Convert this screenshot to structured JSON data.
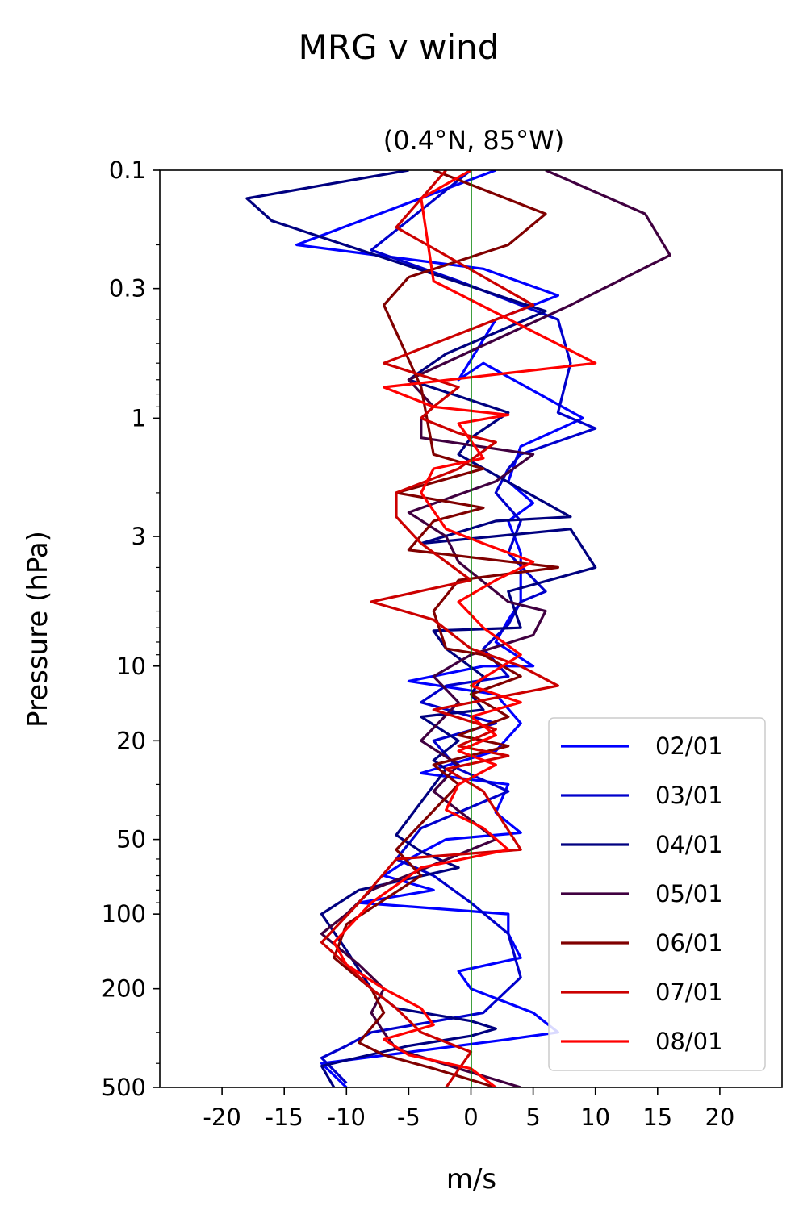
{
  "chart_data": {
    "type": "line",
    "title": "MRG v wind",
    "subtitle": "(0.4°N, 85°W)",
    "xlabel": "m/s",
    "ylabel": "Pressure (hPa)",
    "xlim": [
      -25,
      25
    ],
    "ylim": [
      500,
      0.1
    ],
    "yscale": "log",
    "y_inverted": true,
    "x_ticks": [
      -20,
      -15,
      -10,
      -5,
      0,
      5,
      10,
      15,
      20
    ],
    "x_tick_labels": [
      "-20",
      "-15",
      "-10",
      "-5",
      "0",
      "5",
      "10",
      "15",
      "20"
    ],
    "y_ticks": [
      0.1,
      0.3,
      1,
      3,
      10,
      20,
      50,
      100,
      200,
      500
    ],
    "y_tick_labels": [
      "0.1",
      "0.3",
      "1",
      "3",
      "10",
      "20",
      "50",
      "100",
      "200",
      "500"
    ],
    "zero_line_color": "#008000",
    "legend_position": "lower-right",
    "grid": false,
    "series": [
      {
        "name": "02/01",
        "color": "#0000ff",
        "x": [
          2,
          -14,
          1,
          7,
          2,
          -1,
          1,
          9,
          4,
          3,
          5,
          3,
          4,
          4,
          3,
          2,
          5,
          1,
          -5,
          2,
          4,
          2,
          -4,
          3,
          2,
          4,
          -2,
          -5,
          -7,
          -3,
          -9,
          3,
          3,
          4,
          -1,
          0,
          5,
          7,
          3,
          -12,
          -10
        ],
        "y": [
          0.1,
          0.2,
          0.25,
          0.32,
          0.4,
          0.7,
          0.6,
          1.0,
          1.3,
          1.8,
          2.2,
          2.6,
          3.5,
          5.5,
          6.5,
          8,
          10,
          10,
          11.5,
          13,
          17,
          22,
          27,
          30,
          39,
          47,
          50,
          60,
          70,
          80,
          90,
          100,
          120,
          150,
          170,
          200,
          250,
          300,
          320,
          400,
          500
        ]
      },
      {
        "name": "03/01",
        "color": "#0000cc",
        "x": [
          0,
          -8,
          -1,
          7,
          8,
          7,
          10,
          4,
          3,
          2,
          4,
          3,
          6,
          4,
          3,
          1,
          3,
          -2,
          -4,
          2,
          -3,
          -1,
          3,
          -4,
          -5,
          -6,
          -3,
          0,
          3,
          4,
          1,
          -8,
          -10,
          -12,
          -10
        ],
        "y": [
          0.1,
          0.21,
          0.28,
          0.4,
          0.6,
          0.95,
          1.1,
          1.4,
          1.6,
          2.0,
          2.6,
          3.5,
          5.0,
          5.5,
          6.8,
          8.5,
          11,
          12,
          14,
          17,
          20,
          26,
          32,
          45,
          52,
          60,
          70,
          90,
          120,
          180,
          250,
          300,
          340,
          380,
          480
        ]
      },
      {
        "name": "04/01",
        "color": "#000080",
        "x": [
          -5,
          -18,
          -16,
          6,
          -2,
          -5,
          3,
          0,
          -1,
          8,
          2,
          -4,
          8,
          10,
          3,
          4,
          -3,
          -2,
          1,
          0,
          1,
          -4,
          -1,
          -3,
          -2,
          -6,
          -4,
          -1,
          -9,
          -12,
          -10,
          -8,
          -6,
          0,
          2,
          0,
          -5,
          -12,
          -11
        ],
        "y": [
          0.1,
          0.13,
          0.16,
          0.37,
          0.55,
          0.7,
          0.95,
          1.2,
          1.4,
          2.5,
          2.6,
          3.2,
          2.8,
          4.0,
          5.0,
          7.0,
          7.2,
          8.5,
          11,
          13,
          15,
          16,
          20,
          24,
          26,
          48,
          56,
          65,
          80,
          100,
          140,
          200,
          240,
          270,
          290,
          310,
          340,
          410,
          500
        ]
      },
      {
        "name": "05/01",
        "color": "#400040",
        "x": [
          6,
          14,
          16,
          8,
          -5,
          -3,
          -4,
          -4,
          5,
          2,
          -5,
          -2,
          -1,
          3,
          6,
          5,
          0,
          -3,
          -1,
          -4,
          -1,
          -3,
          2,
          -8,
          -10,
          -12,
          -9,
          -7,
          -8,
          -7,
          -6,
          -1,
          4
        ],
        "y": [
          0.1,
          0.15,
          0.22,
          0.35,
          0.7,
          0.9,
          1.0,
          1.2,
          1.4,
          1.8,
          2.4,
          3.0,
          3.8,
          5.5,
          6.0,
          7.5,
          9.0,
          11,
          14,
          20,
          25,
          32,
          50,
          80,
          100,
          120,
          160,
          200,
          250,
          300,
          350,
          420,
          500
        ]
      },
      {
        "name": "06/01",
        "color": "#800000",
        "x": [
          -3,
          6,
          3,
          -5,
          -7,
          -6,
          -4,
          -3,
          1,
          -6,
          1,
          -3,
          -5,
          7,
          -1,
          -3,
          -2,
          1,
          4,
          0,
          3,
          -1,
          3,
          -3,
          -1,
          -6,
          -4,
          -10,
          -11,
          -8,
          -7,
          -9,
          -7,
          -3,
          2
        ],
        "y": [
          0.1,
          0.15,
          0.2,
          0.27,
          0.35,
          0.45,
          0.75,
          1.4,
          1.6,
          2.0,
          2.3,
          2.6,
          3.4,
          4.0,
          4.5,
          6.0,
          8.5,
          9.0,
          11,
          13,
          16,
          19,
          21,
          25,
          30,
          55,
          70,
          110,
          150,
          200,
          250,
          330,
          370,
          420,
          500
        ]
      },
      {
        "name": "07/01",
        "color": "#cc0000",
        "x": [
          -2,
          -6,
          5,
          -7,
          -1,
          -3,
          -4,
          -1,
          2,
          -1,
          -6,
          -6,
          -4,
          0,
          -8,
          -3,
          0,
          4,
          7,
          -3,
          2,
          -1,
          3,
          -2,
          1,
          4,
          -6,
          -9,
          -12,
          -10,
          -8,
          -6,
          -4,
          0,
          -2
        ],
        "y": [
          0.1,
          0.17,
          0.35,
          0.6,
          0.75,
          0.9,
          1.0,
          1.15,
          1.25,
          1.6,
          2.0,
          2.5,
          3.2,
          4.5,
          5.5,
          6.5,
          8.5,
          10,
          12,
          15,
          18,
          21,
          23,
          26,
          32,
          55,
          60,
          90,
          130,
          160,
          200,
          240,
          300,
          360,
          500
        ]
      },
      {
        "name": "08/01",
        "color": "#ff0000",
        "x": [
          0,
          -4,
          -3,
          10,
          -7,
          -3,
          3,
          -1,
          1,
          -3,
          -4,
          -2,
          1,
          5,
          2,
          -1,
          1,
          4,
          0,
          4,
          0,
          2,
          -1,
          2,
          -1,
          -2,
          1,
          3,
          -4,
          -8,
          -11,
          -10,
          -7,
          -4,
          -3,
          -7,
          -5,
          0,
          2
        ],
        "y": [
          0.1,
          0.13,
          0.28,
          0.6,
          0.75,
          0.9,
          0.97,
          1.05,
          1.45,
          1.6,
          2.0,
          2.8,
          3.2,
          3.8,
          4.5,
          5.5,
          7.0,
          9.0,
          12,
          14,
          16,
          19,
          22,
          25,
          30,
          38,
          45,
          55,
          65,
          90,
          130,
          160,
          200,
          240,
          280,
          320,
          370,
          420,
          500
        ]
      }
    ]
  }
}
